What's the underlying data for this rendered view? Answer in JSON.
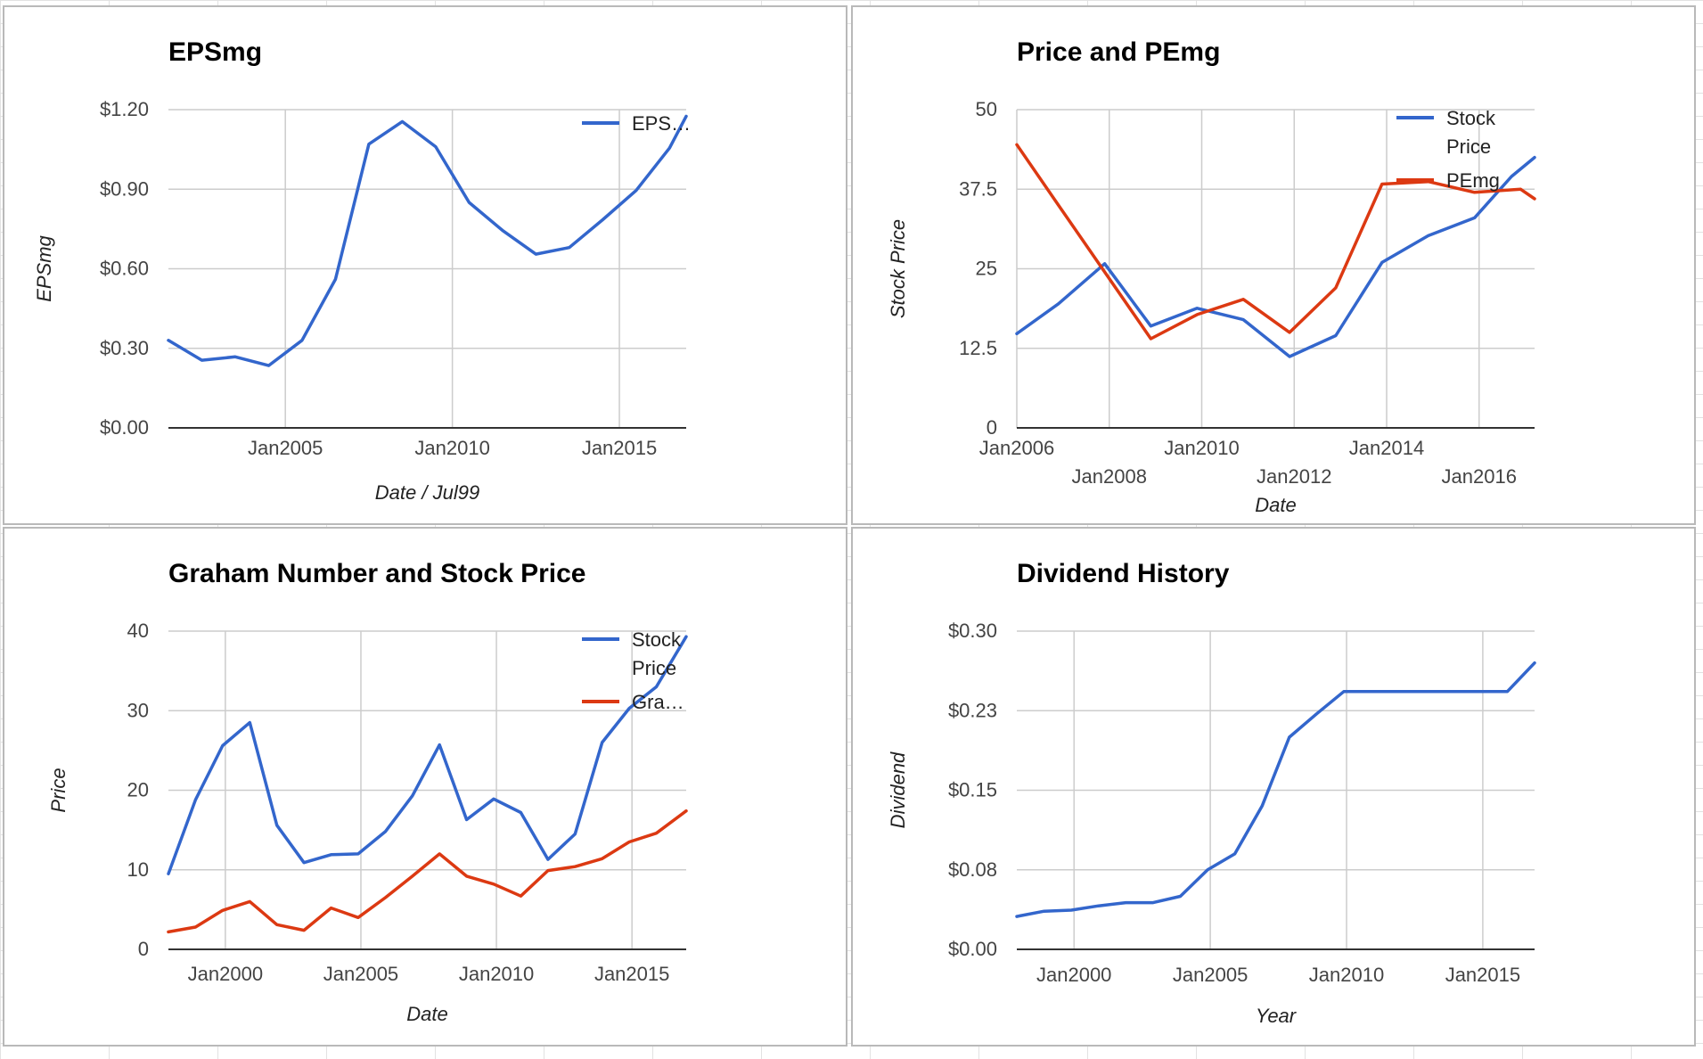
{
  "colors": {
    "blue": "#3366cc",
    "red": "#dc3912"
  },
  "chart_data": [
    {
      "id": "epsmg",
      "type": "line",
      "title": "EPSmg",
      "xlabel": "Date / Jul99",
      "ylabel": "EPSmg",
      "xlim": [
        2001.5,
        2017.0
      ],
      "ylim": [
        0,
        1.2
      ],
      "x_ticks": [
        {
          "value": 2005,
          "label": "Jan2005"
        },
        {
          "value": 2010,
          "label": "Jan2010"
        },
        {
          "value": 2015,
          "label": "Jan2015"
        }
      ],
      "y_ticks": [
        {
          "value": 0,
          "label": "$0.00"
        },
        {
          "value": 0.3,
          "label": "$0.30"
        },
        {
          "value": 0.6,
          "label": "$0.60"
        },
        {
          "value": 0.9,
          "label": "$0.90"
        },
        {
          "value": 1.2,
          "label": "$1.20"
        }
      ],
      "legend_position": "right",
      "series": [
        {
          "name": "EPS…",
          "color": "#3366cc",
          "points": [
            [
              2001.5,
              0.33
            ],
            [
              2002.5,
              0.255
            ],
            [
              2003.5,
              0.268
            ],
            [
              2004.5,
              0.235
            ],
            [
              2005.5,
              0.33
            ],
            [
              2006.5,
              0.56
            ],
            [
              2007.5,
              1.07
            ],
            [
              2008.5,
              1.155
            ],
            [
              2009.5,
              1.06
            ],
            [
              2010.5,
              0.85
            ],
            [
              2011.5,
              0.745
            ],
            [
              2012.5,
              0.655
            ],
            [
              2013.5,
              0.68
            ],
            [
              2014.5,
              0.785
            ],
            [
              2015.5,
              0.895
            ],
            [
              2016.5,
              1.055
            ],
            [
              2017.0,
              1.175
            ]
          ]
        }
      ]
    },
    {
      "id": "price-pemg",
      "type": "line",
      "title": "Price and PEmg",
      "xlabel": "Date",
      "ylabel": "Stock Price",
      "xlim": [
        2006.0,
        2017.2
      ],
      "ylim": [
        0,
        50
      ],
      "x_ticks": [
        {
          "value": 2006,
          "label": "Jan2006",
          "row": 0
        },
        {
          "value": 2008,
          "label": "Jan2008",
          "row": 1
        },
        {
          "value": 2010,
          "label": "Jan2010",
          "row": 0
        },
        {
          "value": 2012,
          "label": "Jan2012",
          "row": 1
        },
        {
          "value": 2014,
          "label": "Jan2014",
          "row": 0
        },
        {
          "value": 2016,
          "label": "Jan2016",
          "row": 1
        }
      ],
      "y_ticks": [
        {
          "value": 0,
          "label": "0"
        },
        {
          "value": 12.5,
          "label": "12.5"
        },
        {
          "value": 25,
          "label": "25"
        },
        {
          "value": 37.5,
          "label": "37.5"
        },
        {
          "value": 50,
          "label": "50"
        }
      ],
      "legend_position": "right",
      "series": [
        {
          "name": "Stock Price",
          "color": "#3366cc",
          "points": [
            [
              2006.0,
              14.8
            ],
            [
              2006.9,
              19.5
            ],
            [
              2007.9,
              25.8
            ],
            [
              2008.9,
              16.0
            ],
            [
              2009.9,
              18.8
            ],
            [
              2010.9,
              17.0
            ],
            [
              2011.9,
              11.2
            ],
            [
              2012.9,
              14.5
            ],
            [
              2013.9,
              26.0
            ],
            [
              2014.9,
              30.2
            ],
            [
              2015.9,
              33.0
            ],
            [
              2016.7,
              39.5
            ],
            [
              2017.2,
              42.5
            ]
          ]
        },
        {
          "name": "PEmg",
          "color": "#dc3912",
          "points": [
            [
              2006.0,
              44.5
            ],
            [
              2006.9,
              35.0
            ],
            [
              2007.9,
              24.5
            ],
            [
              2008.9,
              14.0
            ],
            [
              2009.9,
              17.8
            ],
            [
              2010.9,
              20.2
            ],
            [
              2011.9,
              15.0
            ],
            [
              2012.9,
              22.0
            ],
            [
              2013.9,
              38.3
            ],
            [
              2014.9,
              38.7
            ],
            [
              2015.9,
              37.0
            ],
            [
              2016.9,
              37.5
            ],
            [
              2017.2,
              36.0
            ]
          ]
        }
      ]
    },
    {
      "id": "graham",
      "type": "line",
      "title": "Graham Number and Stock Price",
      "xlabel": "Date",
      "ylabel": "Price",
      "xlim": [
        1997.9,
        2017.0
      ],
      "ylim": [
        0,
        40
      ],
      "x_ticks": [
        {
          "value": 2000,
          "label": "Jan2000"
        },
        {
          "value": 2005,
          "label": "Jan2005"
        },
        {
          "value": 2010,
          "label": "Jan2010"
        },
        {
          "value": 2015,
          "label": "Jan2015"
        }
      ],
      "y_ticks": [
        {
          "value": 0,
          "label": "0"
        },
        {
          "value": 10,
          "label": "10"
        },
        {
          "value": 20,
          "label": "20"
        },
        {
          "value": 30,
          "label": "30"
        },
        {
          "value": 40,
          "label": "40"
        }
      ],
      "legend_position": "right",
      "series": [
        {
          "name": "Stock Price",
          "color": "#3366cc",
          "points": [
            [
              1997.9,
              9.5
            ],
            [
              1998.9,
              18.8
            ],
            [
              1999.9,
              25.6
            ],
            [
              2000.9,
              28.5
            ],
            [
              2001.9,
              15.6
            ],
            [
              2002.9,
              10.9
            ],
            [
              2003.9,
              11.9
            ],
            [
              2004.9,
              12.0
            ],
            [
              2005.9,
              14.8
            ],
            [
              2006.9,
              19.3
            ],
            [
              2007.9,
              25.7
            ],
            [
              2008.9,
              16.3
            ],
            [
              2009.9,
              18.9
            ],
            [
              2010.9,
              17.2
            ],
            [
              2011.9,
              11.3
            ],
            [
              2012.9,
              14.5
            ],
            [
              2013.9,
              26.0
            ],
            [
              2014.9,
              30.3
            ],
            [
              2015.9,
              33.0
            ],
            [
              2017.0,
              39.3
            ]
          ]
        },
        {
          "name": "Gra…",
          "color": "#dc3912",
          "points": [
            [
              1997.9,
              2.2
            ],
            [
              1998.9,
              2.8
            ],
            [
              1999.9,
              4.9
            ],
            [
              2000.9,
              6.0
            ],
            [
              2001.9,
              3.1
            ],
            [
              2002.9,
              2.4
            ],
            [
              2003.9,
              5.2
            ],
            [
              2004.9,
              4.0
            ],
            [
              2005.9,
              6.5
            ],
            [
              2006.9,
              9.2
            ],
            [
              2007.9,
              12.0
            ],
            [
              2008.9,
              9.2
            ],
            [
              2009.9,
              8.2
            ],
            [
              2010.9,
              6.7
            ],
            [
              2011.9,
              9.9
            ],
            [
              2012.9,
              10.4
            ],
            [
              2013.9,
              11.4
            ],
            [
              2014.9,
              13.5
            ],
            [
              2015.9,
              14.6
            ],
            [
              2017.0,
              17.4
            ]
          ]
        }
      ]
    },
    {
      "id": "dividend",
      "type": "line",
      "title": "Dividend History",
      "xlabel": "Year",
      "ylabel": "Dividend",
      "xlim": [
        1997.9,
        2016.9
      ],
      "ylim": [
        0,
        0.3
      ],
      "x_ticks": [
        {
          "value": 2000,
          "label": "Jan2000"
        },
        {
          "value": 2005,
          "label": "Jan2005"
        },
        {
          "value": 2010,
          "label": "Jan2010"
        },
        {
          "value": 2015,
          "label": "Jan2015"
        }
      ],
      "y_ticks": [
        {
          "value": 0,
          "label": "$0.00"
        },
        {
          "value": 0.075,
          "label": "$0.08"
        },
        {
          "value": 0.15,
          "label": "$0.15"
        },
        {
          "value": 0.225,
          "label": "$0.23"
        },
        {
          "value": 0.3,
          "label": "$0.30"
        }
      ],
      "legend_position": "none",
      "series": [
        {
          "name": "",
          "color": "#3366cc",
          "points": [
            [
              1997.9,
              0.031
            ],
            [
              1998.9,
              0.036
            ],
            [
              1999.9,
              0.037
            ],
            [
              2000.9,
              0.041
            ],
            [
              2001.9,
              0.044
            ],
            [
              2002.9,
              0.044
            ],
            [
              2003.9,
              0.05
            ],
            [
              2004.9,
              0.075
            ],
            [
              2005.9,
              0.09
            ],
            [
              2006.9,
              0.135
            ],
            [
              2007.9,
              0.2
            ],
            [
              2008.9,
              0.222
            ],
            [
              2009.9,
              0.243
            ],
            [
              2010.9,
              0.243
            ],
            [
              2011.9,
              0.243
            ],
            [
              2012.9,
              0.243
            ],
            [
              2013.9,
              0.243
            ],
            [
              2014.9,
              0.243
            ],
            [
              2015.9,
              0.243
            ],
            [
              2016.9,
              0.27
            ]
          ]
        }
      ]
    }
  ]
}
